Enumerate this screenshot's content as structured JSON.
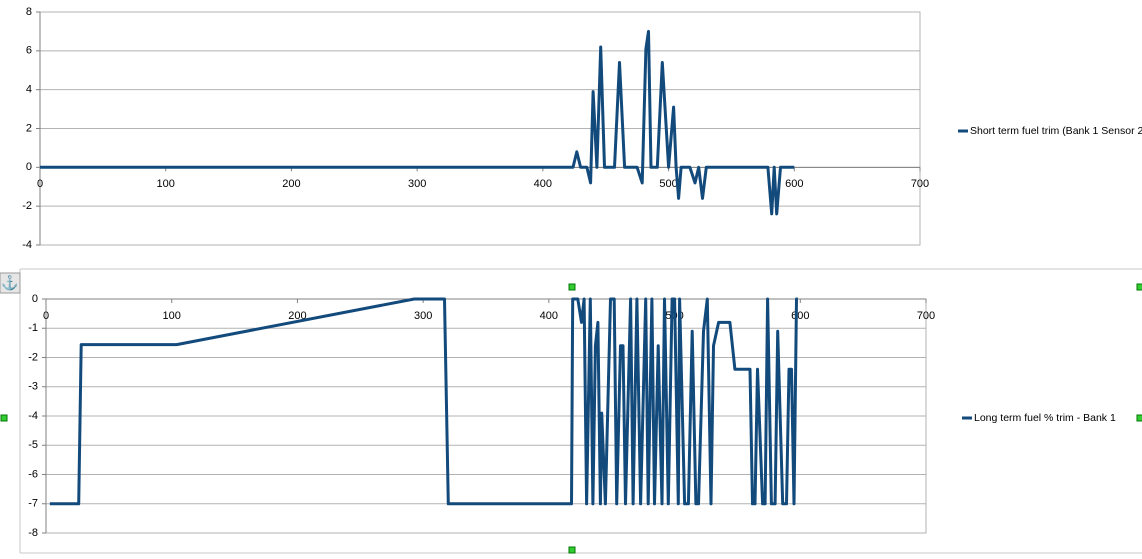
{
  "chart_data": [
    {
      "type": "line",
      "xlim": [
        0,
        700
      ],
      "xticks": [
        0,
        100,
        200,
        300,
        400,
        500,
        600,
        700
      ],
      "ylim": [
        -4,
        8
      ],
      "yticks": [
        -4,
        -2,
        0,
        2,
        4,
        6,
        8
      ],
      "grid": true,
      "series": [
        {
          "name": "Short term fuel trim (Bank 1  Sensor 2",
          "color": "#134a7c",
          "x": [
            0,
            424,
            427,
            430,
            435,
            438,
            440,
            443,
            446,
            449,
            457,
            461,
            465,
            475,
            479,
            482,
            484,
            486,
            491,
            495,
            500,
            504,
            506,
            508,
            510,
            517,
            521,
            524,
            527,
            530,
            579,
            582,
            584,
            586,
            589,
            600
          ],
          "values": [
            0,
            0,
            0.8,
            0,
            0,
            -0.8,
            3.9,
            0,
            6.2,
            0,
            0,
            5.4,
            0,
            0,
            -0.8,
            6.1,
            7.0,
            0,
            0,
            5.4,
            0,
            3.1,
            0,
            -1.6,
            0,
            0,
            -0.8,
            0,
            -1.6,
            0,
            0,
            -2.4,
            0,
            -2.4,
            0,
            0
          ]
        }
      ]
    },
    {
      "type": "line",
      "xlim": [
        0,
        700
      ],
      "xticks": [
        0,
        100,
        200,
        300,
        400,
        500,
        600,
        700
      ],
      "ylim": [
        -8,
        0
      ],
      "yticks": [
        -8,
        -7,
        -6,
        -5,
        -4,
        -3,
        -2,
        -1,
        0
      ],
      "grid": true,
      "series": [
        {
          "name": "Long term fuel % trim - Bank 1",
          "color": "#134a7c",
          "x": [
            3,
            26,
            28,
            104,
            293,
            317,
            320,
            418,
            419,
            423,
            426,
            428,
            430,
            433,
            435,
            437,
            439,
            441,
            442,
            445,
            449,
            452,
            454,
            457,
            459,
            461,
            465,
            467,
            470,
            473,
            477,
            479,
            482,
            484,
            487,
            490,
            492,
            495,
            498,
            500,
            503,
            504,
            508,
            511,
            514,
            517,
            519,
            523,
            526,
            529,
            531,
            535,
            538,
            544,
            548,
            554,
            560,
            562,
            564,
            566,
            570,
            572,
            574,
            577,
            580,
            582,
            586,
            589,
            591,
            593,
            595,
            597,
            598
          ],
          "values": [
            -7,
            -7,
            -1.56,
            -1.56,
            0,
            0,
            -7,
            -7,
            0,
            0,
            -0.8,
            0,
            -7,
            0,
            -7,
            -1.6,
            -0.8,
            -7,
            -3.9,
            -7,
            0,
            0,
            -7,
            -1.6,
            -1.6,
            -7,
            0,
            -7,
            0,
            -7,
            0,
            -7,
            0,
            -7,
            -1.6,
            -7,
            0,
            -7,
            0,
            0,
            -7,
            0,
            -7,
            -7,
            -1.1,
            -7,
            -7,
            -1.1,
            0,
            -7,
            -1.6,
            -0.8,
            -0.8,
            -0.8,
            -2.4,
            -2.4,
            -2.4,
            -7,
            -7,
            -2.4,
            -7,
            -7,
            0,
            -7,
            -7,
            -1.1,
            -7,
            -7,
            -2.4,
            -2.4,
            -7,
            0,
            0
          ]
        }
      ]
    }
  ]
}
